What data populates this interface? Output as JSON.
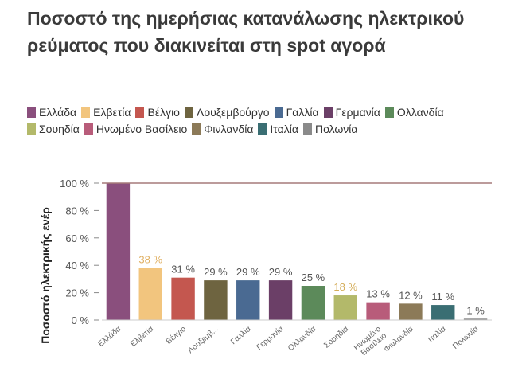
{
  "chart_data": {
    "type": "bar",
    "title": "Ποσοστό της ημερήσιας κατανάλωσης ηλεκτρικού ρεύματος που διακινείται στη spot αγορά",
    "ylabel": "Ποσοστό ηλεκτρικής ενέρ",
    "xlabel": "",
    "ylim": [
      0,
      100
    ],
    "yticks": [
      0,
      20,
      40,
      60,
      80,
      100
    ],
    "ytick_labels": [
      "0 %",
      "20 %",
      "40 %",
      "60 %",
      "80 %",
      "100 %"
    ],
    "grid": false,
    "legend_position": "top",
    "categories": [
      "Ελλάδα",
      "Ελβετία",
      "Βέλγιο",
      "Λουξεμβούργο",
      "Γαλλία",
      "Γερμανία",
      "Ολλανδία",
      "Σουηδία",
      "Ηνωμένο Βασίλειο",
      "Φινλανδία",
      "Ιταλία",
      "Πολωνία"
    ],
    "category_tick_labels": [
      "Ελλάδα",
      "Ελβετία",
      "Βέλγιο",
      "Λουξεμβ...",
      "Γαλλία",
      "Γερμανία",
      "Ολλανδία",
      "Σουηδία",
      "Ηνωμένο Βασίλειο",
      "Φινλανδία",
      "Ιταλία",
      "Πολωνία"
    ],
    "values": [
      100,
      38,
      31,
      29,
      29,
      29,
      25,
      18,
      13,
      12,
      11,
      1
    ],
    "value_labels": [
      "",
      "38 %",
      "31 %",
      "29 %",
      "29 %",
      "29 %",
      "25 %",
      "18 %",
      "13 %",
      "12 %",
      "11 %",
      "1 %"
    ],
    "colors": [
      "#8a4f7d",
      "#f2c57e",
      "#c4574f",
      "#6e6440",
      "#4a6a92",
      "#6b3f67",
      "#5c8a5a",
      "#b3b96a",
      "#b85c7a",
      "#8c7a58",
      "#3a6e73",
      "#8a8a8a"
    ],
    "value_label_colors": [
      "#555555",
      "#e0b063",
      "#555555",
      "#555555",
      "#555555",
      "#555555",
      "#555555",
      "#d4ad5a",
      "#555555",
      "#555555",
      "#555555",
      "#555555"
    ],
    "reference_line": {
      "value": 100,
      "color": "#a67a7a"
    }
  }
}
